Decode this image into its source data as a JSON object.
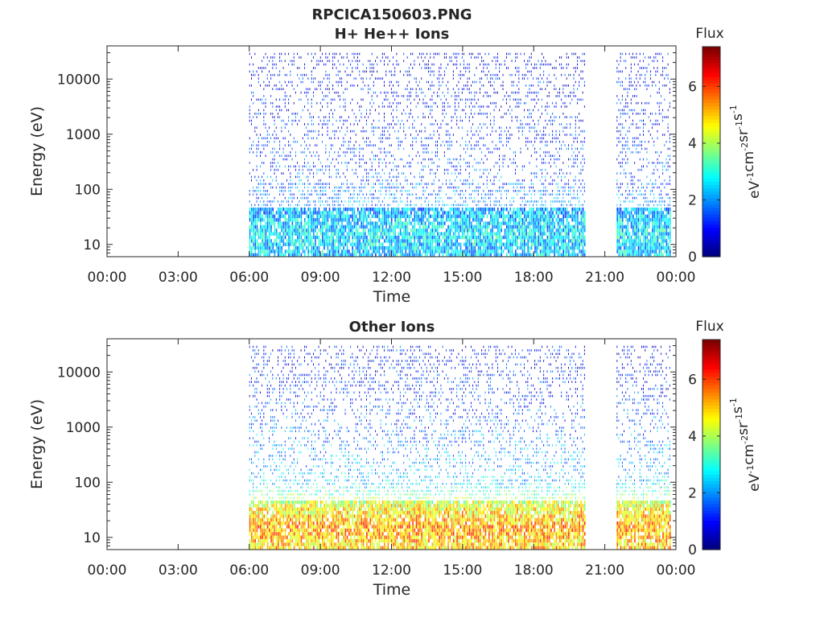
{
  "figure_title": "RPCICA150603.PNG",
  "colorbar": {
    "label": "Flux",
    "unit_prefix": "eV",
    "unit_parts": [
      {
        "base": "eV",
        "exp": "-1"
      },
      {
        "base": "cm",
        "exp": "-2"
      },
      {
        "base": "sr",
        "exp": "-1"
      },
      {
        "base": "s",
        "exp": "-1"
      }
    ],
    "range": [
      0,
      7.4
    ],
    "ticks": [
      0,
      2,
      4,
      6
    ],
    "colormap": "jet"
  },
  "chart_data": [
    {
      "type": "heatmap",
      "title": "H+ He++ Ions",
      "xlabel": "Time",
      "ylabel": "Energy (eV)",
      "x_ticks": [
        "00:00",
        "03:00",
        "06:00",
        "09:00",
        "12:00",
        "15:00",
        "18:00",
        "21:00",
        "00:00"
      ],
      "xlim_hours": [
        0,
        24
      ],
      "y_scale": "log",
      "ylim": [
        6,
        40000
      ],
      "y_ticks": [
        10,
        100,
        1000,
        10000
      ],
      "y_tick_labels": [
        "10",
        "100",
        "1000",
        "10000"
      ],
      "data_gaps_hours": [
        [
          0,
          6.0
        ],
        [
          20.2,
          21.5
        ]
      ],
      "data_intervals_hours": [
        [
          6.0,
          20.2
        ],
        [
          21.5,
          23.8
        ]
      ],
      "energy_profile": [
        {
          "energy_eV": 8,
          "flux_typical": 2.4
        },
        {
          "energy_eV": 15,
          "flux_typical": 2.6
        },
        {
          "energy_eV": 30,
          "flux_typical": 2.4
        },
        {
          "energy_eV": 100,
          "flux_typical": 1.6
        },
        {
          "energy_eV": 1000,
          "flux_typical": 1.1
        },
        {
          "energy_eV": 10000,
          "flux_typical": 0.9
        },
        {
          "energy_eV": 25000,
          "flux_typical": 0.6
        }
      ]
    },
    {
      "type": "heatmap",
      "title": "Other Ions",
      "xlabel": "Time",
      "ylabel": "Energy (eV)",
      "x_ticks": [
        "00:00",
        "03:00",
        "06:00",
        "09:00",
        "12:00",
        "15:00",
        "18:00",
        "21:00",
        "00:00"
      ],
      "xlim_hours": [
        0,
        24
      ],
      "y_scale": "log",
      "ylim": [
        6,
        40000
      ],
      "y_ticks": [
        10,
        100,
        1000,
        10000
      ],
      "y_tick_labels": [
        "10",
        "100",
        "1000",
        "10000"
      ],
      "data_gaps_hours": [
        [
          0,
          6.0
        ],
        [
          20.2,
          21.5
        ]
      ],
      "data_intervals_hours": [
        [
          6.0,
          20.2
        ],
        [
          21.5,
          23.8
        ]
      ],
      "energy_profile": [
        {
          "energy_eV": 8,
          "flux_typical": 5.0
        },
        {
          "energy_eV": 15,
          "flux_typical": 5.3
        },
        {
          "energy_eV": 35,
          "flux_typical": 4.6
        },
        {
          "energy_eV": 100,
          "flux_typical": 2.4
        },
        {
          "energy_eV": 1000,
          "flux_typical": 1.6
        },
        {
          "energy_eV": 10000,
          "flux_typical": 1.0
        }
      ]
    }
  ]
}
